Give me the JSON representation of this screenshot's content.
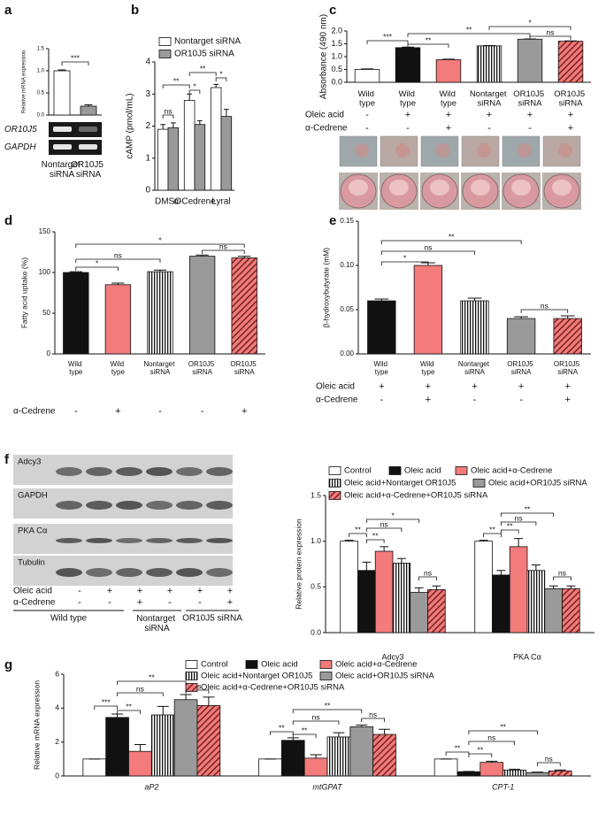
{
  "panels": [
    "a",
    "b",
    "c",
    "d",
    "e",
    "f",
    "g"
  ],
  "gel": {
    "rows": [
      "OR10J5",
      "GAPDH"
    ]
  },
  "western_blot": {
    "rows": [
      "Adcy3",
      "GAPDH",
      "PKA Cα",
      "Tubulin"
    ],
    "conditions": [
      {
        "label": "Oleic acid",
        "signs": [
          "-",
          "+",
          "+",
          "+",
          "+",
          "+"
        ]
      },
      {
        "label": "α-Cedrene",
        "signs": [
          "-",
          "-",
          "+",
          "-",
          "-",
          "+"
        ]
      }
    ],
    "groups": [
      "Wild type",
      "Nontarget siRNA",
      "OR10J5 siRNA"
    ]
  },
  "chart_data": [
    {
      "type": "bar",
      "ylabel": "Relative mRNA expression",
      "categories": [
        "Nontarget siRNA",
        "OR10J5 siRNA"
      ],
      "values": [
        1.0,
        0.2
      ],
      "errors": [
        0.02,
        0.03
      ],
      "styles": [
        "white",
        "gray"
      ],
      "ylim": [
        0,
        1.5
      ],
      "yticks": [
        {
          "value": 0,
          "label": "0.0"
        },
        {
          "value": 0.5,
          "label": "0.5"
        },
        {
          "value": 1,
          "label": "1.0"
        },
        {
          "value": 1.5,
          "label": "1.5"
        }
      ],
      "significance": [
        "***"
      ]
    },
    {
      "type": "bar",
      "ylabel": "cAMP (pmol/mL)",
      "categories": [
        "DMSO",
        "α-Cedrene",
        "Lyral"
      ],
      "series": [
        {
          "name": "Nontarget siRNA",
          "style": "white",
          "values": [
            1.9,
            2.8,
            3.2
          ],
          "errors": [
            0.15,
            0.2,
            0.1
          ]
        },
        {
          "name": "OR10J5 siRNA",
          "style": "gray",
          "values": [
            1.95,
            2.05,
            2.3
          ],
          "errors": [
            0.15,
            0.12,
            0.22
          ]
        }
      ],
      "ylim": [
        0,
        4
      ],
      "yticks": [
        0,
        1,
        2,
        3,
        4
      ],
      "significance": [
        "ns",
        "**",
        "*",
        "**",
        "*"
      ]
    },
    {
      "type": "bar",
      "ylabel": "Absorbance (490 nm)",
      "categories": [
        "Wild type",
        "Wild type",
        "Wild type",
        "Nontarget siRNA",
        "OR10J5 siRNA",
        "OR10J5 siRNA"
      ],
      "values": [
        0.5,
        1.35,
        0.88,
        1.42,
        1.68,
        1.6
      ],
      "errors": [
        0.02,
        0.02,
        0.02,
        0.01,
        0.01,
        0.01
      ],
      "styles": [
        "white",
        "black",
        "salmon",
        "stripes",
        "gray",
        "hatch"
      ],
      "ylim": [
        0,
        2
      ],
      "yticks": [
        {
          "value": 0,
          "label": "0.0"
        },
        {
          "value": 0.5,
          "label": "0.5"
        },
        {
          "value": 1,
          "label": "1.0"
        },
        {
          "value": 1.5,
          "label": "1.5"
        },
        {
          "value": 2,
          "label": "2.0"
        }
      ],
      "significance": [
        "***",
        "**",
        "**",
        "*",
        "ns"
      ],
      "conditions": [
        {
          "label": "Oleic acid",
          "signs": [
            "-",
            "+",
            "+",
            "+",
            "+",
            "+"
          ]
        },
        {
          "label": "α-Cedrene",
          "signs": [
            "-",
            "-",
            "+",
            "-",
            "-",
            "+"
          ]
        }
      ]
    },
    {
      "type": "bar",
      "ylabel": "Fatty acid uptake (%)",
      "categories": [
        "Wild type",
        "Wild type",
        "Nontarget siRNA",
        "OR10J5 siRNA",
        "OR10J5 siRNA"
      ],
      "values": [
        100,
        85,
        101,
        120,
        118
      ],
      "errors": [
        1,
        2,
        2,
        1.5,
        2
      ],
      "styles": [
        "black",
        "salmon",
        "stripes",
        "gray",
        "hatch"
      ],
      "ylim": [
        0,
        150
      ],
      "yticks": [
        0,
        50,
        100,
        150
      ],
      "significance": [
        "*",
        "ns",
        "*",
        "ns"
      ],
      "conditions": [
        {
          "label": "α-Cedrene",
          "signs": [
            "-",
            "+",
            "-",
            "-",
            "+"
          ]
        }
      ]
    },
    {
      "type": "bar",
      "ylabel": "β-hydroxybutyrate (mM)",
      "categories": [
        "Wild type",
        "Wild type",
        "Nontarget siRNA",
        "OR10J5 siRNA",
        "OR10J5 siRNA"
      ],
      "values": [
        0.06,
        0.1,
        0.06,
        0.04,
        0.04
      ],
      "errors": [
        0.002,
        0.003,
        0.003,
        0.002,
        0.003
      ],
      "styles": [
        "black",
        "salmon",
        "stripes",
        "gray",
        "hatch"
      ],
      "ylim": [
        0,
        0.15
      ],
      "yticks": [
        {
          "value": 0,
          "label": "0.00"
        },
        {
          "value": 0.05,
          "label": "0.05"
        },
        {
          "value": 0.1,
          "label": "0.10"
        },
        {
          "value": 0.15,
          "label": "0.15"
        }
      ],
      "significance": [
        "*",
        "ns",
        "**",
        "ns"
      ],
      "conditions": [
        {
          "label": "Oleic acid",
          "signs": [
            "+",
            "+",
            "+",
            "+",
            "+"
          ]
        },
        {
          "label": "α-Cedrene",
          "signs": [
            "-",
            "+",
            "-",
            "-",
            "+"
          ]
        }
      ]
    },
    {
      "type": "bar",
      "ylabel": "Relative protein expression",
      "categories": [
        "Adcy3",
        "PKA Cα"
      ],
      "series": [
        {
          "name": "Control",
          "style": "white",
          "values": [
            1.0,
            1.0
          ],
          "errors": [
            0.01,
            0.01
          ]
        },
        {
          "name": "Oleic acid",
          "style": "black",
          "values": [
            0.68,
            0.63
          ],
          "errors": [
            0.09,
            0.05
          ]
        },
        {
          "name": "Oleic acid+α-Cedrene",
          "style": "salmon",
          "values": [
            0.89,
            0.94
          ],
          "errors": [
            0.05,
            0.09
          ]
        },
        {
          "name": "Oleic acid+Nontarget OR10J5",
          "style": "stripes",
          "values": [
            0.76,
            0.68
          ],
          "errors": [
            0.05,
            0.06
          ]
        },
        {
          "name": "Oleic acid+OR10J5 siRNA",
          "style": "gray",
          "values": [
            0.44,
            0.48
          ],
          "errors": [
            0.05,
            0.03
          ]
        },
        {
          "name": "Oleic acid+α-Cedrene+OR10J5 siRNA",
          "style": "hatch",
          "values": [
            0.47,
            0.48
          ],
          "errors": [
            0.04,
            0.03
          ]
        }
      ],
      "ylim": [
        0,
        1.5
      ],
      "yticks": [
        {
          "value": 0,
          "label": "0.0"
        },
        {
          "value": 0.5,
          "label": "0.5"
        },
        {
          "value": 1,
          "label": "1.0"
        },
        {
          "value": 1.5,
          "label": "1.5"
        }
      ],
      "significance": [
        "**",
        "**",
        "ns",
        "*",
        "ns",
        "**",
        "**",
        "ns",
        "**",
        "ns"
      ]
    },
    {
      "type": "bar",
      "ylabel": "Relative mRNA expression",
      "categories": [
        "aP2",
        "mtGPAT",
        "CPT-1"
      ],
      "series": [
        {
          "name": "Control",
          "style": "white",
          "values": [
            1,
            1,
            1
          ],
          "errors": [
            0,
            0,
            0
          ]
        },
        {
          "name": "Oleic acid",
          "style": "black",
          "values": [
            3.45,
            2.1,
            0.25
          ],
          "errors": [
            0.2,
            0.15,
            0.02
          ]
        },
        {
          "name": "Oleic acid+α-Cedrene",
          "style": "salmon",
          "values": [
            1.45,
            1.05,
            0.8
          ],
          "errors": [
            0.4,
            0.2,
            0.07
          ]
        },
        {
          "name": "Oleic acid+Nontarget OR10J5",
          "style": "stripes",
          "values": [
            3.6,
            2.3,
            0.35
          ],
          "errors": [
            0.5,
            0.25,
            0.05
          ]
        },
        {
          "name": "Oleic acid+OR10J5 siRNA",
          "style": "gray",
          "values": [
            4.5,
            2.9,
            0.2
          ],
          "errors": [
            0.3,
            0.1,
            0.03
          ]
        },
        {
          "name": "Oleic acid+α-Cedrene+OR10J5 siRNA",
          "style": "hatch",
          "values": [
            4.15,
            2.45,
            0.3
          ],
          "errors": [
            0.5,
            0.3,
            0.05
          ]
        }
      ],
      "ylim": [
        0,
        6
      ],
      "yticks": [
        0,
        2,
        4,
        6
      ],
      "significance": [
        "***",
        "**",
        "ns",
        "**",
        "ns",
        "**",
        "**",
        "ns",
        "**",
        "ns",
        "**",
        "**",
        "ns",
        "**",
        "ns"
      ]
    }
  ]
}
